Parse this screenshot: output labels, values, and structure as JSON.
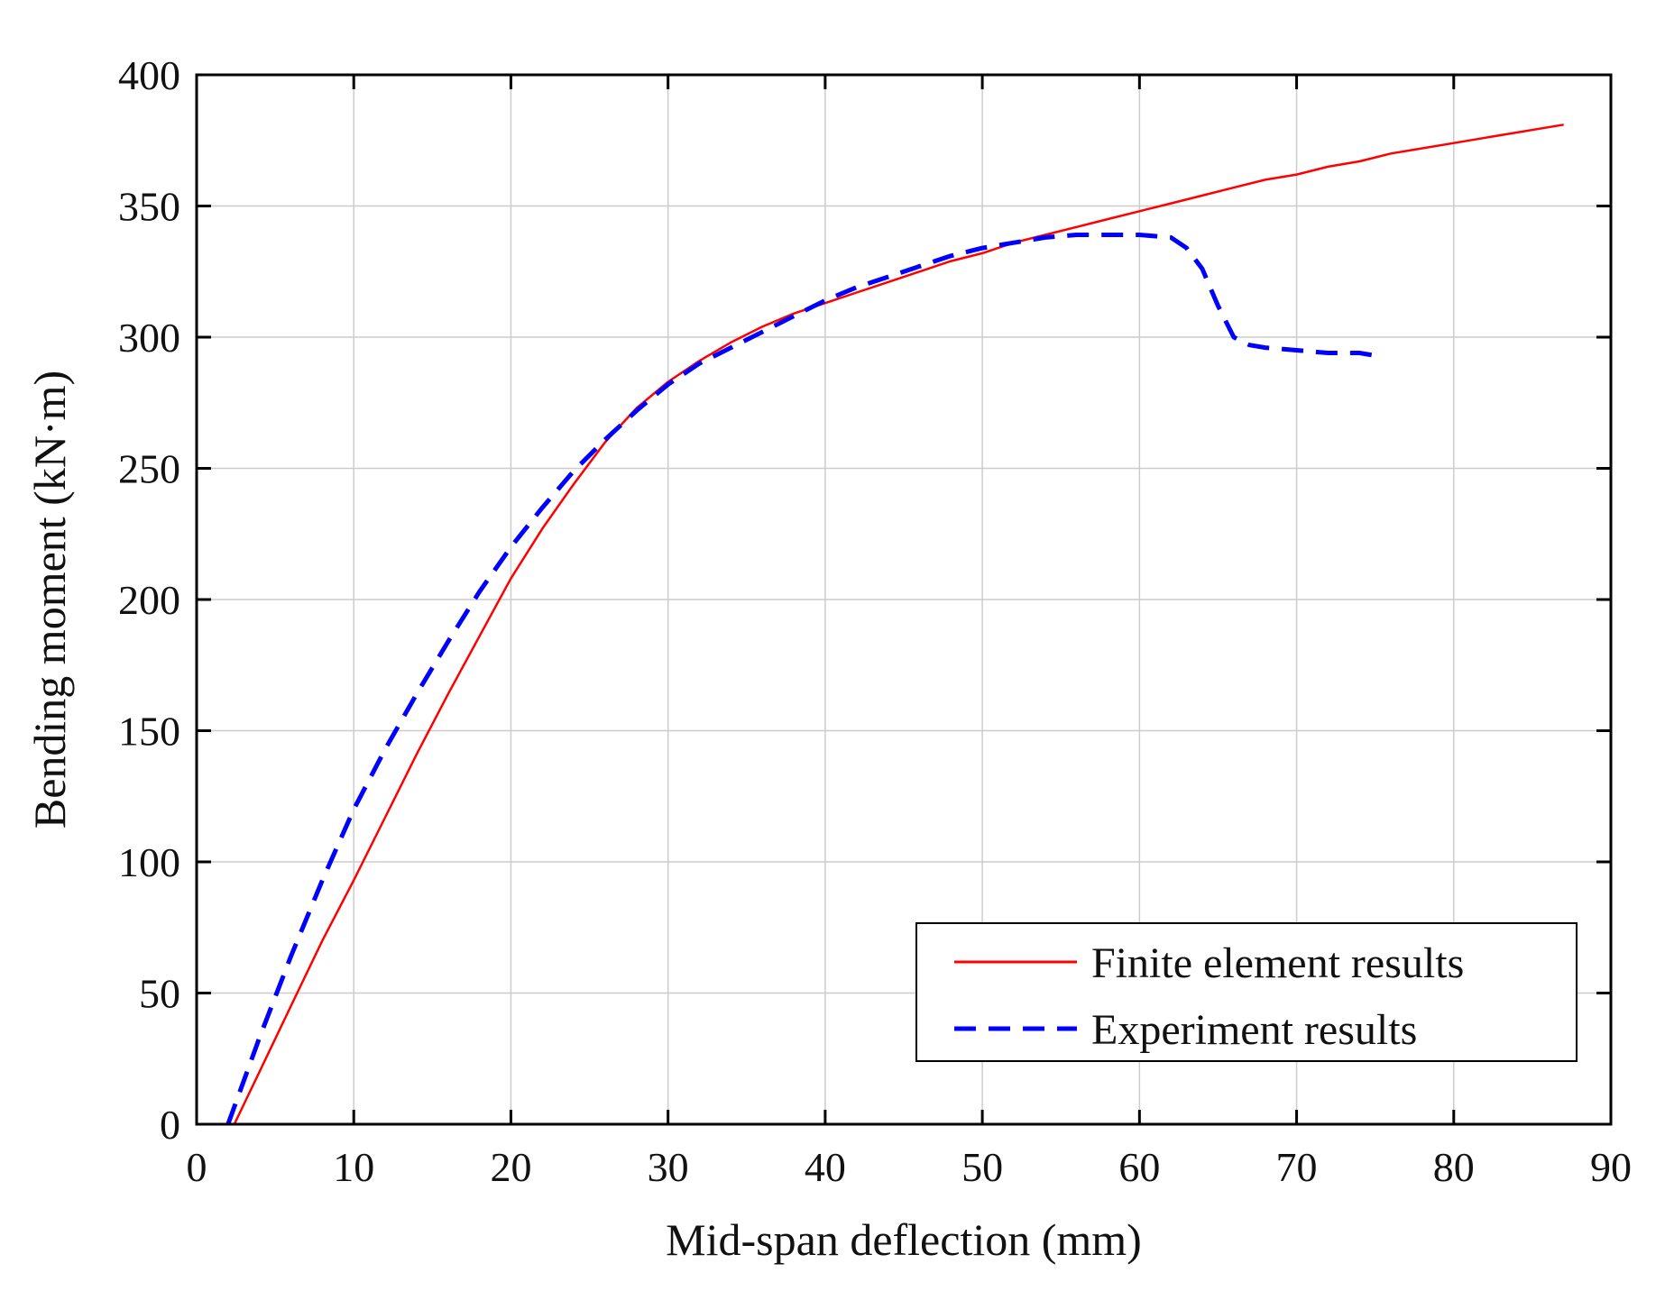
{
  "chart_data": {
    "type": "line",
    "title": "",
    "xlabel": "Mid-span deflection (mm)",
    "ylabel": "Bending moment (kN·m)",
    "xlim": [
      0,
      90
    ],
    "ylim": [
      0,
      400
    ],
    "xticks": [
      0,
      10,
      20,
      30,
      40,
      50,
      60,
      70,
      80,
      90
    ],
    "yticks": [
      0,
      50,
      100,
      150,
      200,
      250,
      300,
      350,
      400
    ],
    "xtick_labels": [
      "0",
      "10",
      "20",
      "30",
      "40",
      "50",
      "60",
      "70",
      "80",
      "90"
    ],
    "ytick_labels": [
      "0",
      "50",
      "100",
      "150",
      "200",
      "250",
      "300",
      "350",
      "400"
    ],
    "grid": true,
    "legend_position": "bottom-right",
    "series": [
      {
        "name": "Finite element results",
        "color": "#ff0000",
        "style": "solid",
        "x": [
          2.4,
          4,
          6,
          8,
          10,
          12,
          14,
          16,
          18,
          20,
          22,
          24,
          26,
          28,
          30,
          32,
          34,
          36,
          38,
          40,
          42,
          44,
          46,
          48,
          50,
          52,
          54,
          56,
          58,
          60,
          62,
          64,
          66,
          68,
          70,
          72,
          74,
          76,
          78,
          80,
          82,
          84,
          86,
          87
        ],
        "y": [
          0,
          20,
          45,
          70,
          93,
          117,
          141,
          164,
          186,
          208,
          227,
          244,
          260,
          273,
          283,
          291,
          298,
          304,
          309,
          313,
          317,
          321,
          325,
          329,
          332,
          336,
          339,
          342,
          345,
          348,
          351,
          354,
          357,
          360,
          362,
          365,
          367,
          370,
          372,
          374,
          376,
          378,
          380,
          381
        ]
      },
      {
        "name": "Experiment results",
        "color": "#0000ff",
        "style": "dashed",
        "x": [
          2,
          4,
          6,
          8,
          10,
          12,
          14,
          16,
          18,
          20,
          22,
          24,
          26,
          28,
          30,
          32,
          34,
          36,
          38,
          40,
          42,
          44,
          46,
          48,
          50,
          52,
          54,
          56,
          58,
          60,
          62,
          63,
          64,
          65,
          66,
          67,
          68,
          70,
          72,
          74,
          75
        ],
        "y": [
          0,
          33,
          64,
          93,
          120,
          143,
          164,
          184,
          203,
          220,
          235,
          249,
          261,
          272,
          282,
          290,
          296,
          302,
          308,
          314,
          319,
          323,
          327,
          331,
          334,
          336,
          338,
          339,
          339,
          339,
          338,
          334,
          326,
          312,
          300,
          297,
          296,
          295,
          294,
          294,
          293
        ]
      }
    ]
  }
}
